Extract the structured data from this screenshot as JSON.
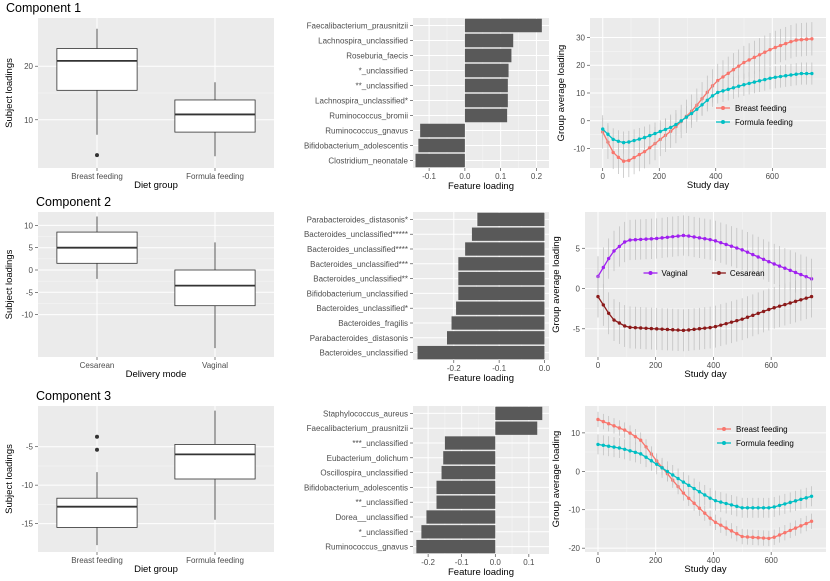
{
  "component_titles": [
    "Component 1",
    "Component 2",
    "Component 3"
  ],
  "colors": {
    "panel_bg": "#ebebeb",
    "grid_major": "#ffffff",
    "bar": "#595959",
    "breast_feeding": "#f8766d",
    "formula_feeding": "#00bfc4",
    "vaginal": "#a020f0",
    "cesarean": "#8b1a1a",
    "errorbar": "#bdbdbd"
  },
  "chart_data": [
    {
      "id": "c1-box",
      "type": "box",
      "title": "Component 1",
      "xlabel": "Diet group",
      "ylabel": "Subject loadings",
      "ylim": [
        1,
        29
      ],
      "yticks": [
        10,
        20
      ],
      "categories": [
        "Breast feeding",
        "Formula feeding"
      ],
      "boxes": [
        {
          "min": 7.2,
          "q1": 15.5,
          "median": 21.0,
          "q3": 23.3,
          "max": 27.0,
          "outliers": [
            3.4
          ]
        },
        {
          "min": 3.2,
          "q1": 7.7,
          "median": 11.0,
          "q3": 13.7,
          "max": 17.0,
          "outliers": []
        }
      ]
    },
    {
      "id": "c1-bar",
      "type": "bar",
      "orientation": "horizontal",
      "xlabel": "Feature loading",
      "xlim": [
        -0.145,
        0.235
      ],
      "xticks": [
        -0.1,
        0.0,
        0.1,
        0.2
      ],
      "categories": [
        "Faecalibacterium_prausnitzii",
        "Lachnospira_unclassified",
        "Roseburia_faecis",
        "*_unclassified",
        "**_unclassified",
        "Lachnospira_unclassified*",
        "Ruminococcus_bromii",
        "Ruminococcus_gnavus",
        "Bifidobacterium_adolescentis",
        "Clostridium_neonatale"
      ],
      "values": [
        0.215,
        0.135,
        0.13,
        0.122,
        0.12,
        0.12,
        0.118,
        -0.125,
        -0.13,
        -0.138
      ]
    },
    {
      "id": "c1-line",
      "type": "line",
      "xlabel": "Study day",
      "ylabel": "Group average loading",
      "xlim": [
        -45,
        790
      ],
      "ylim": [
        -17,
        37
      ],
      "xticks": [
        0,
        200,
        400,
        600
      ],
      "yticks": [
        -10,
        0,
        10,
        20,
        30
      ],
      "legend_position": "right",
      "series": [
        {
          "name": "Breast feeding",
          "color_key": "breast_feeding",
          "knots": [
            [
              0,
              -4
            ],
            [
              40,
              -12
            ],
            [
              80,
              -15
            ],
            [
              150,
              -11
            ],
            [
              250,
              -3
            ],
            [
              320,
              4
            ],
            [
              400,
              14
            ],
            [
              500,
              21
            ],
            [
              600,
              26
            ],
            [
              680,
              29
            ],
            [
              740,
              29.5
            ]
          ],
          "spread": 6
        },
        {
          "name": "Formula feeding",
          "color_key": "formula_feeding",
          "knots": [
            [
              0,
              -3
            ],
            [
              40,
              -7
            ],
            [
              80,
              -8
            ],
            [
              150,
              -6
            ],
            [
              250,
              -2
            ],
            [
              320,
              3
            ],
            [
              400,
              10
            ],
            [
              500,
              13
            ],
            [
              600,
              15.5
            ],
            [
              700,
              17
            ],
            [
              740,
              17
            ]
          ],
          "spread": 4
        }
      ]
    },
    {
      "id": "c2-box",
      "type": "box",
      "title": "Component 2",
      "xlabel": "Delivery mode",
      "ylabel": "Subject loadings",
      "ylim": [
        -19.5,
        13
      ],
      "yticks": [
        -10,
        -5,
        0,
        5,
        10
      ],
      "categories": [
        "Cesarean",
        "Vaginal"
      ],
      "boxes": [
        {
          "min": -2.0,
          "q1": 1.5,
          "median": 5.0,
          "q3": 8.5,
          "max": 12.0,
          "outliers": []
        },
        {
          "min": -17.5,
          "q1": -8.0,
          "median": -3.5,
          "q3": 0.0,
          "max": 6.2,
          "outliers": []
        }
      ]
    },
    {
      "id": "c2-bar",
      "type": "bar",
      "orientation": "horizontal",
      "xlabel": "Feature loading",
      "xlim": [
        -0.29,
        0.01
      ],
      "xticks": [
        -0.2,
        -0.1,
        0.0
      ],
      "categories": [
        "Parabacteroides_distasonis*",
        "Bacteroides_unclassified*****",
        "Bacteroides_unclassified****",
        "Bacteroides_unclassified***",
        "Bacteroides_unclassified**",
        "Bifidobacterium_unclassified",
        "Bacteroides_unclassified*",
        "Bacteroides_fragilis",
        "Parabacteroides_distasonis",
        "Bacteroides_unclassified"
      ],
      "values": [
        -0.148,
        -0.16,
        -0.175,
        -0.19,
        -0.19,
        -0.19,
        -0.195,
        -0.205,
        -0.215,
        -0.28
      ]
    },
    {
      "id": "c2-line",
      "type": "line",
      "xlabel": "Study day",
      "ylabel": "Group average loading",
      "xlim": [
        -45,
        790
      ],
      "ylim": [
        -8.5,
        9.5
      ],
      "xticks": [
        0,
        200,
        400,
        600
      ],
      "yticks": [
        -5,
        0,
        5
      ],
      "legend_position": "top",
      "series": [
        {
          "name": "Vaginal",
          "color_key": "vaginal",
          "knots": [
            [
              0,
              1.5
            ],
            [
              50,
              4.5
            ],
            [
              100,
              6
            ],
            [
              200,
              6.2
            ],
            [
              300,
              6.6
            ],
            [
              400,
              6
            ],
            [
              500,
              4.8
            ],
            [
              600,
              3.2
            ],
            [
              740,
              1.2
            ]
          ],
          "spread": 2.5
        },
        {
          "name": "Cesarean",
          "color_key": "cesarean",
          "knots": [
            [
              0,
              -1
            ],
            [
              50,
              -3.8
            ],
            [
              100,
              -4.8
            ],
            [
              200,
              -5
            ],
            [
              300,
              -5.2
            ],
            [
              400,
              -4.8
            ],
            [
              500,
              -3.8
            ],
            [
              600,
              -2.5
            ],
            [
              740,
              -1
            ]
          ],
          "spread": 2.6
        }
      ]
    },
    {
      "id": "c3-box",
      "type": "box",
      "title": "Component 3",
      "xlabel": "Diet group",
      "ylabel": "Subject loadings",
      "ylim": [
        -18.7,
        0.3
      ],
      "yticks": [
        -15,
        -10,
        -5
      ],
      "categories": [
        "Breast feeding",
        "Formula feeding"
      ],
      "boxes": [
        {
          "min": -17.8,
          "q1": -15.5,
          "median": -12.8,
          "q3": -11.7,
          "max": -8.3,
          "outliers": [
            -3.7,
            -5.4
          ]
        },
        {
          "min": -14.5,
          "q1": -9.2,
          "median": -6.0,
          "q3": -4.7,
          "max": -0.3,
          "outliers": []
        }
      ]
    },
    {
      "id": "c3-bar",
      "type": "bar",
      "orientation": "horizontal",
      "xlabel": "Feature loading",
      "xlim": [
        -0.245,
        0.16
      ],
      "xticks": [
        -0.2,
        -0.1,
        0.0,
        0.1
      ],
      "categories": [
        "Staphylococcus_aureus",
        "Faecalibacterium_prausnitzii",
        "***_unclassified",
        "Eubacterium_dolichum",
        "Oscillospira_unclassified",
        "Bifidobacterium_adolescentis",
        "**_unclassified",
        "Dorea__unclassified",
        "*_unclassified",
        "Ruminococcus_gnavus"
      ],
      "values": [
        0.14,
        0.125,
        -0.15,
        -0.155,
        -0.16,
        -0.175,
        -0.175,
        -0.205,
        -0.22,
        -0.235
      ]
    },
    {
      "id": "c3-line",
      "type": "line",
      "xlabel": "Study day",
      "ylabel": "Group average loading",
      "xlim": [
        -45,
        790
      ],
      "ylim": [
        -21,
        17
      ],
      "xticks": [
        0,
        200,
        400,
        600
      ],
      "yticks": [
        -20,
        -10,
        0,
        10
      ],
      "legend_position": "top-right",
      "series": [
        {
          "name": "Breast feeding",
          "color_key": "breast_feeding",
          "knots": [
            [
              0,
              13.5
            ],
            [
              50,
              12
            ],
            [
              100,
              10.5
            ],
            [
              150,
              8
            ],
            [
              200,
              3
            ],
            [
              300,
              -6
            ],
            [
              400,
              -13
            ],
            [
              500,
              -17
            ],
            [
              600,
              -17.5
            ],
            [
              740,
              -13
            ]
          ],
          "spread": 2
        },
        {
          "name": "Formula feeding",
          "color_key": "formula_feeding",
          "knots": [
            [
              0,
              7
            ],
            [
              80,
              6
            ],
            [
              150,
              4.5
            ],
            [
              200,
              2
            ],
            [
              300,
              -3
            ],
            [
              400,
              -7.5
            ],
            [
              500,
              -9.5
            ],
            [
              600,
              -9.5
            ],
            [
              740,
              -6.5
            ]
          ],
          "spread": 2.6
        }
      ]
    }
  ]
}
